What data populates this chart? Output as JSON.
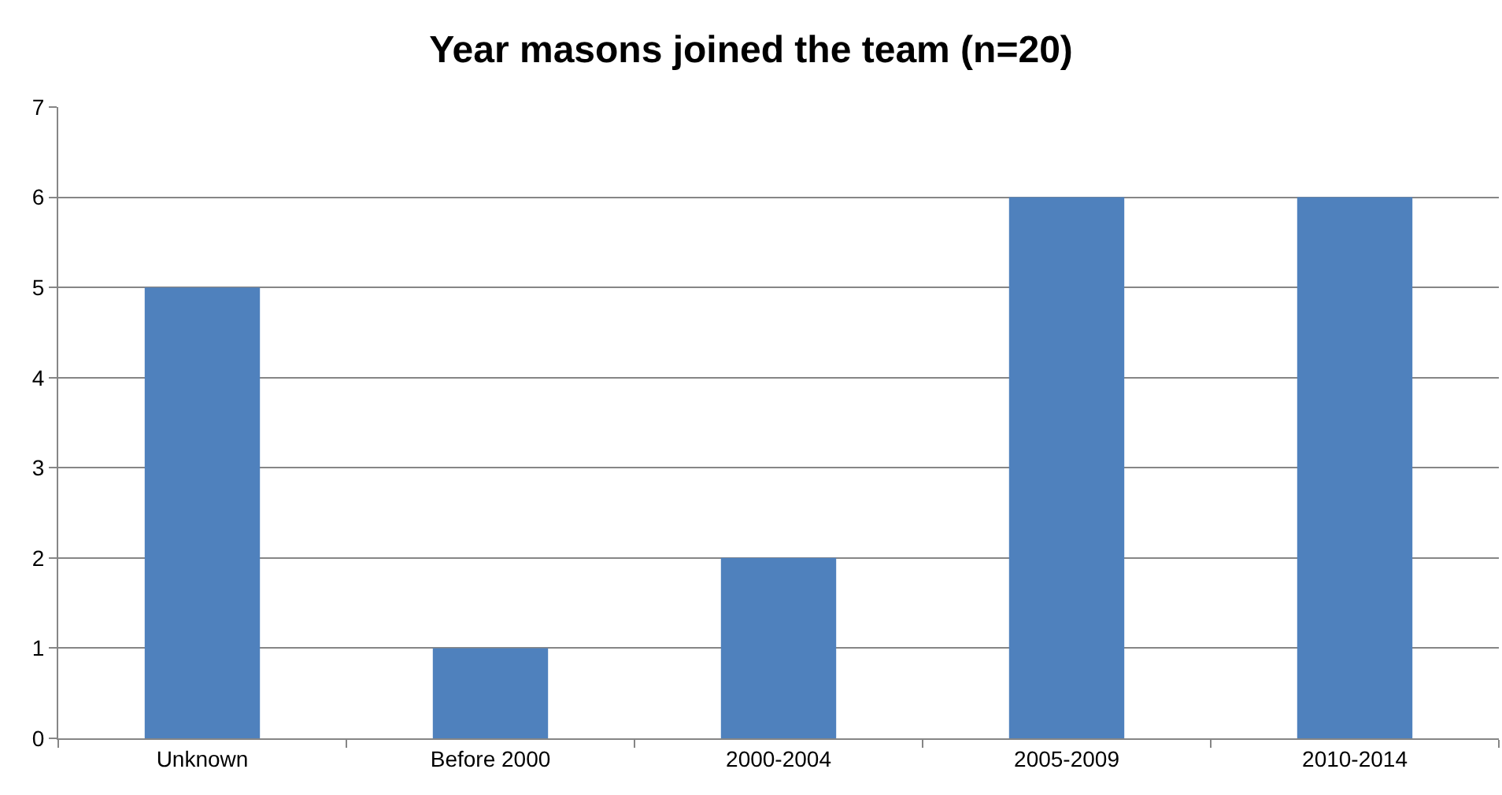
{
  "chart_data": {
    "type": "bar",
    "title": "Year masons joined the team (n=20)",
    "categories": [
      "Unknown",
      "Before 2000",
      "2000-2004",
      "2005-2009",
      "2010-2014"
    ],
    "values": [
      5,
      1,
      2,
      6,
      6
    ],
    "color": "#4f81bd",
    "ylim": [
      0,
      7
    ],
    "yticks": [
      0,
      1,
      2,
      3,
      4,
      5,
      6,
      7
    ],
    "grid": "y",
    "legend": false
  }
}
